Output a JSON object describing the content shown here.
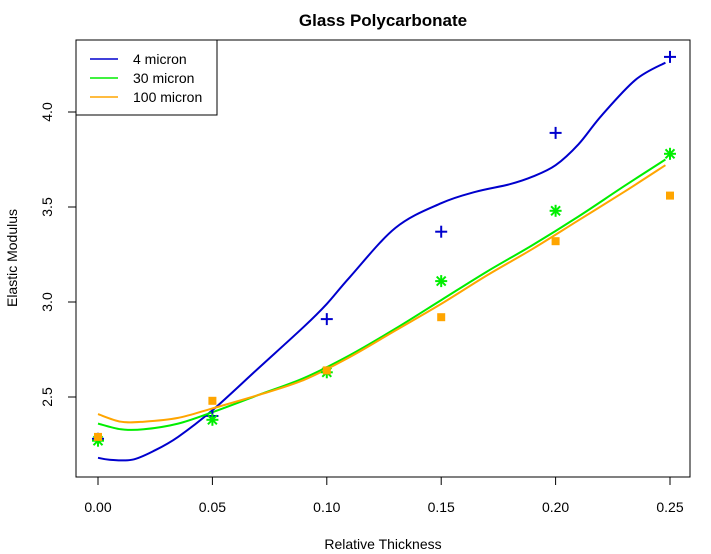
{
  "chart_data": {
    "type": "line",
    "title": "Glass Polycarbonate",
    "xlabel": "Relative Thickness",
    "ylabel": "Elastic Modulus",
    "xlim": [
      0,
      0.25
    ],
    "ylim": [
      2.1,
      4.35
    ],
    "x_ticks": [
      "0.00",
      "0.05",
      "0.10",
      "0.15",
      "0.20",
      "0.25"
    ],
    "y_ticks": [
      "2.5",
      "3.0",
      "3.5",
      "4.0"
    ],
    "grid": false,
    "legend_position": "top-left",
    "series": [
      {
        "name": "4 micron",
        "color": "#0000CD",
        "marker": "plus",
        "points": {
          "x": [
            0.0,
            0.05,
            0.1,
            0.15,
            0.2,
            0.25
          ],
          "y": [
            2.28,
            2.4,
            2.91,
            3.37,
            3.89,
            4.29
          ]
        },
        "curve": {
          "x": [
            0.0,
            0.005,
            0.015,
            0.025,
            0.035,
            0.05,
            0.07,
            0.09,
            0.1,
            0.11,
            0.13,
            0.15,
            0.165,
            0.18,
            0.19,
            0.2,
            0.21,
            0.22,
            0.235,
            0.248
          ],
          "y": [
            2.18,
            2.17,
            2.17,
            2.22,
            2.29,
            2.43,
            2.65,
            2.87,
            2.99,
            3.13,
            3.39,
            3.52,
            3.58,
            3.62,
            3.66,
            3.72,
            3.83,
            3.98,
            4.17,
            4.26
          ]
        }
      },
      {
        "name": "30 micron",
        "color": "#00EE00",
        "marker": "star",
        "points": {
          "x": [
            0.0,
            0.05,
            0.1,
            0.15,
            0.2,
            0.25
          ],
          "y": [
            2.27,
            2.38,
            2.63,
            3.11,
            3.48,
            3.78
          ]
        },
        "curve": {
          "x": [
            0.0,
            0.01,
            0.02,
            0.035,
            0.05,
            0.07,
            0.09,
            0.11,
            0.13,
            0.15,
            0.17,
            0.19,
            0.21,
            0.23,
            0.248
          ],
          "y": [
            2.36,
            2.33,
            2.33,
            2.36,
            2.42,
            2.51,
            2.6,
            2.72,
            2.86,
            3.01,
            3.16,
            3.3,
            3.45,
            3.61,
            3.75
          ]
        }
      },
      {
        "name": "100 micron",
        "color": "#FFA500",
        "marker": "square",
        "points": {
          "x": [
            0.0,
            0.05,
            0.1,
            0.15,
            0.2,
            0.25
          ],
          "y": [
            2.29,
            2.48,
            2.64,
            2.92,
            3.32,
            3.56
          ]
        },
        "curve": {
          "x": [
            0.0,
            0.01,
            0.02,
            0.035,
            0.05,
            0.07,
            0.09,
            0.11,
            0.13,
            0.15,
            0.17,
            0.19,
            0.21,
            0.23,
            0.248
          ],
          "y": [
            2.41,
            2.37,
            2.37,
            2.39,
            2.44,
            2.51,
            2.59,
            2.71,
            2.85,
            2.99,
            3.14,
            3.28,
            3.43,
            3.58,
            3.72
          ]
        }
      }
    ]
  }
}
